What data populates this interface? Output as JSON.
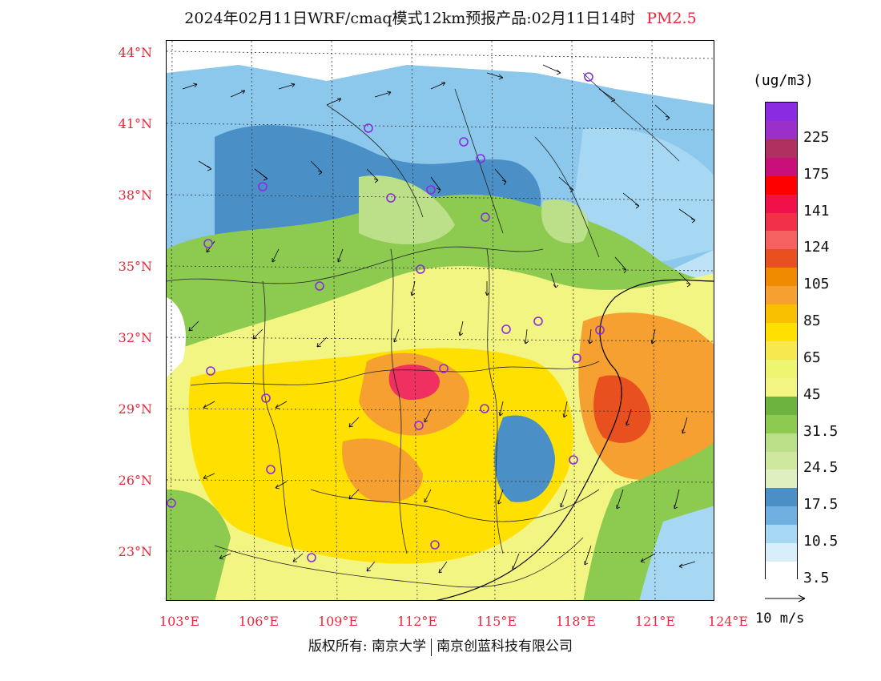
{
  "title": {
    "main": "2024年02月11日WRF/cmaq模式12km预报产品:02月11日14时",
    "pollutant": "PM2.5"
  },
  "colors": {
    "accent": "#e8283a",
    "land_background": "#d8eef9"
  },
  "map": {
    "lat_labels": [
      "44°N",
      "41°N",
      "38°N",
      "35°N",
      "32°N",
      "29°N",
      "26°N",
      "23°N"
    ],
    "lon_labels": [
      "103°E",
      "106°E",
      "109°E",
      "112°E",
      "115°E",
      "118°E",
      "121°E",
      "124°E"
    ],
    "lat_range": [
      21,
      44.5
    ],
    "lon_range": [
      103,
      124
    ],
    "city_marker_color": "#8a2be2"
  },
  "legend": {
    "unit": "(ug/m3)",
    "bins": [
      {
        "color": "#8a2be2",
        "label": ""
      },
      {
        "color": "#9b2fc9",
        "label": "225"
      },
      {
        "color": "#b03060",
        "label": ""
      },
      {
        "color": "#c8107a",
        "label": "175"
      },
      {
        "color": "#ff0000",
        "label": ""
      },
      {
        "color": "#f0104a",
        "label": "141"
      },
      {
        "color": "#f3304a",
        "label": ""
      },
      {
        "color": "#f56060",
        "label": "124"
      },
      {
        "color": "#e85020",
        "label": ""
      },
      {
        "color": "#f08a00",
        "label": "105"
      },
      {
        "color": "#f5a030",
        "label": ""
      },
      {
        "color": "#f8c000",
        "label": "85"
      },
      {
        "color": "#ffe000",
        "label": ""
      },
      {
        "color": "#f7e850",
        "label": "65"
      },
      {
        "color": "#eef570",
        "label": ""
      },
      {
        "color": "#f3f582",
        "label": "45"
      },
      {
        "color": "#6db33f",
        "label": ""
      },
      {
        "color": "#8ccb4f",
        "label": "31.5"
      },
      {
        "color": "#bce08a",
        "label": ""
      },
      {
        "color": "#cfe8a0",
        "label": "24.5"
      },
      {
        "color": "#e0efc0",
        "label": ""
      },
      {
        "color": "#4a8fc5",
        "label": "17.5"
      },
      {
        "color": "#6fb0e0",
        "label": ""
      },
      {
        "color": "#a6d8f4",
        "label": "10.5"
      },
      {
        "color": "#d8eef9",
        "label": ""
      },
      {
        "color": "#ffffff",
        "label": "3.5"
      }
    ]
  },
  "wind": {
    "reference_label": "10 m/s"
  },
  "footer": {
    "copyright": "版权所有: 南京大学",
    "company": "南京创蓝科技有限公司"
  }
}
